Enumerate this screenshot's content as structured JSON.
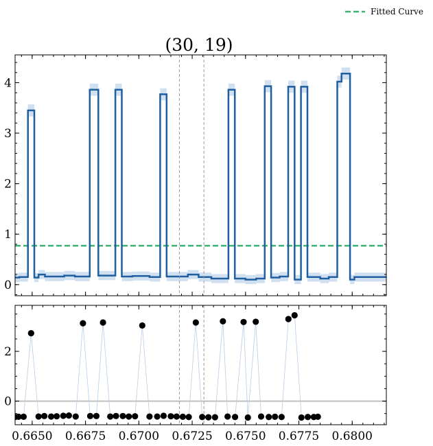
{
  "title": "(30, 19)",
  "legend": {
    "label": "Fitted Curve",
    "color": "#3cb371"
  },
  "colors": {
    "step": "#1f5fa0",
    "band": "#a9c6e6",
    "fit": "#3cb371",
    "zero": "#bfbfbf",
    "vline": "#9a9a9a",
    "point": "#000000",
    "thin": "#b7cde7"
  },
  "chart_data": [
    {
      "type": "line",
      "title": "(30, 19)",
      "xlim": [
        0.6642,
        0.6816
      ],
      "ylim": [
        -0.22,
        4.55
      ],
      "yticks": [
        0,
        1,
        2,
        3,
        4
      ],
      "grid": false,
      "legend_position": "top-right",
      "series": [
        {
          "name": "",
          "kind": "step",
          "segments": [
            [
              0.6642,
              0.6644,
              0.14
            ],
            [
              0.6644,
              0.6646,
              0.15
            ],
            [
              0.6646,
              0.6648,
              0.15
            ],
            [
              0.6648,
              0.6651,
              3.45
            ],
            [
              0.6651,
              0.6653,
              0.14
            ],
            [
              0.6653,
              0.6656,
              0.2
            ],
            [
              0.6656,
              0.666,
              0.16
            ],
            [
              0.666,
              0.6665,
              0.16
            ],
            [
              0.6665,
              0.667,
              0.18
            ],
            [
              0.667,
              0.6677,
              0.16
            ],
            [
              0.6677,
              0.6681,
              3.86
            ],
            [
              0.6681,
              0.6686,
              0.18
            ],
            [
              0.6686,
              0.6689,
              0.18
            ],
            [
              0.6689,
              0.6692,
              3.86
            ],
            [
              0.6692,
              0.6697,
              0.16
            ],
            [
              0.6697,
              0.6705,
              0.17
            ],
            [
              0.6705,
              0.671,
              0.15
            ],
            [
              0.671,
              0.6713,
              3.77
            ],
            [
              0.6713,
              0.6716,
              0.16
            ],
            [
              0.6716,
              0.6723,
              0.16
            ],
            [
              0.6723,
              0.6728,
              0.2
            ],
            [
              0.6728,
              0.6734,
              0.15
            ],
            [
              0.6734,
              0.6738,
              0.12
            ],
            [
              0.6738,
              0.6742,
              0.12
            ],
            [
              0.6742,
              0.6745,
              3.86
            ],
            [
              0.6745,
              0.675,
              0.12
            ],
            [
              0.675,
              0.6755,
              0.1
            ],
            [
              0.6755,
              0.6759,
              0.12
            ],
            [
              0.6759,
              0.6762,
              3.93
            ],
            [
              0.6762,
              0.6766,
              0.14
            ],
            [
              0.6766,
              0.677,
              0.16
            ],
            [
              0.677,
              0.6773,
              3.92
            ],
            [
              0.6773,
              0.6776,
              0.1
            ],
            [
              0.6776,
              0.6779,
              3.92
            ],
            [
              0.6779,
              0.6785,
              0.15
            ],
            [
              0.6785,
              0.6789,
              0.12
            ],
            [
              0.6789,
              0.6793,
              0.15
            ],
            [
              0.6793,
              0.6795,
              4.02
            ],
            [
              0.6795,
              0.6799,
              4.18
            ],
            [
              0.6799,
              0.6801,
              0.1
            ],
            [
              0.6801,
              0.6804,
              0.15
            ],
            [
              0.6804,
              0.6816,
              0.15
            ]
          ]
        },
        {
          "name": "Fitted Curve",
          "kind": "hline",
          "y": 0.77
        },
        {
          "name": "",
          "kind": "vline",
          "x": [
            0.6719,
            0.67305
          ]
        }
      ]
    },
    {
      "type": "scatter",
      "xlim": [
        0.6642,
        0.6816
      ],
      "ylim": [
        -0.95,
        3.85
      ],
      "yticks": [
        0,
        2
      ],
      "xticks": [
        0.665,
        0.6675,
        0.67,
        0.6725,
        0.675,
        0.6775,
        0.68
      ],
      "xtick_labels": [
        "0.6650",
        "0.6675",
        "0.6700",
        "0.6725",
        "0.6750",
        "0.6775",
        "0.6800"
      ],
      "zero_line": 0,
      "grid": false,
      "points": [
        [
          0.6642,
          -0.64
        ],
        [
          0.66436,
          -0.63
        ],
        [
          0.6646,
          -0.63
        ],
        [
          0.66495,
          2.73
        ],
        [
          0.6653,
          -0.62
        ],
        [
          0.66557,
          -0.6
        ],
        [
          0.66589,
          -0.62
        ],
        [
          0.66615,
          -0.61
        ],
        [
          0.66646,
          -0.59
        ],
        [
          0.66672,
          -0.58
        ],
        [
          0.66704,
          -0.62
        ],
        [
          0.66738,
          3.13
        ],
        [
          0.66772,
          -0.6
        ],
        [
          0.66801,
          -0.6
        ],
        [
          0.66832,
          3.16
        ],
        [
          0.66866,
          -0.62
        ],
        [
          0.66893,
          -0.6
        ],
        [
          0.66925,
          -0.6
        ],
        [
          0.66953,
          -0.62
        ],
        [
          0.66982,
          -0.61
        ],
        [
          0.67016,
          3.04
        ],
        [
          0.6705,
          -0.62
        ],
        [
          0.67086,
          -0.62
        ],
        [
          0.67116,
          -0.59
        ],
        [
          0.6715,
          -0.61
        ],
        [
          0.67177,
          -0.62
        ],
        [
          0.67206,
          -0.63
        ],
        [
          0.67234,
          -0.64
        ],
        [
          0.67267,
          3.16
        ],
        [
          0.67297,
          -0.64
        ],
        [
          0.67326,
          -0.65
        ],
        [
          0.67357,
          -0.65
        ],
        [
          0.67394,
          3.21
        ],
        [
          0.67416,
          -0.62
        ],
        [
          0.67451,
          -0.64
        ],
        [
          0.67491,
          3.18
        ],
        [
          0.67511,
          -0.66
        ],
        [
          0.67548,
          3.19
        ],
        [
          0.67573,
          -0.62
        ],
        [
          0.67609,
          -0.64
        ],
        [
          0.67638,
          -0.63
        ],
        [
          0.67669,
          -0.64
        ],
        [
          0.67701,
          3.3
        ],
        [
          0.6773,
          3.45
        ],
        [
          0.67762,
          -0.66
        ],
        [
          0.67792,
          -0.64
        ],
        [
          0.6782,
          -0.64
        ],
        [
          0.67839,
          -0.63
        ]
      ]
    }
  ]
}
